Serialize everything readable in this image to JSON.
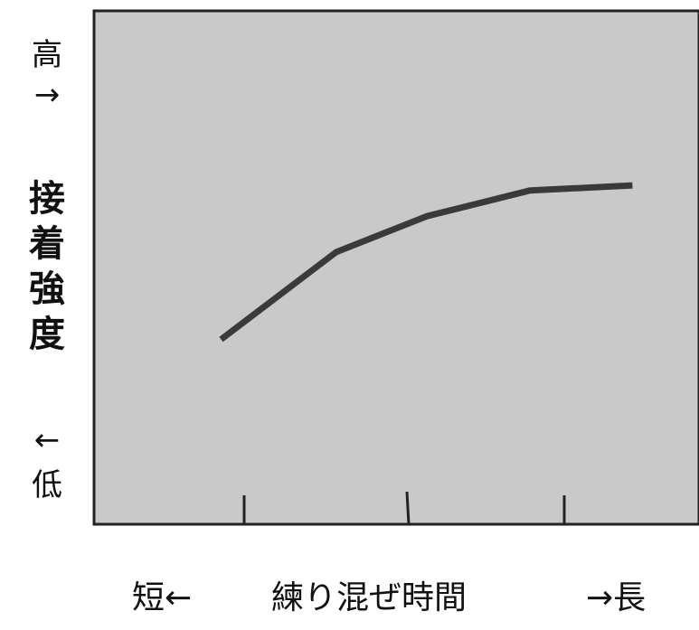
{
  "chart_data": {
    "type": "line",
    "title": "",
    "ylabel": "接着強度",
    "y_high_label": "高",
    "y_high_arrow": "→",
    "y_low_arrow": "←",
    "y_low_label": "低",
    "xlabel": "練り混ぜ時間",
    "x_short_label": "短←",
    "x_long_label": "→長",
    "xlim": [
      0,
      100
    ],
    "ylim": [
      0,
      100
    ],
    "grid": false,
    "series": [
      {
        "x": [
          21,
          40,
          55,
          72,
          89
        ],
        "y": [
          36,
          53,
          60,
          65,
          66
        ]
      }
    ],
    "colors": {
      "plot_bg": "#c9c9c9",
      "line": "#3a3a3a",
      "frame": "#222222"
    }
  }
}
